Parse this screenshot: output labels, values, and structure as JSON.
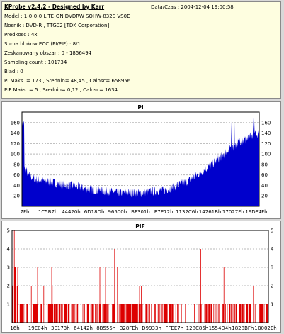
{
  "info": {
    "title": "KProbe v2.4.2 - Designed by Karr",
    "datetime": "Data/Czas : 2004-12-04 19:00:58",
    "lines": [
      "Model : 1-0-0-0 LITE-ON DVDRW SOHW-832S  VS0E",
      "Nosnik : DVD-R , TTG02 [TDK Corporation]",
      "Predkosc : 4x",
      "Suma blokow ECC (PI/PIF) : 8/1",
      "Zeskanowany obszar : 0 - 1856494",
      "Sampling count : 101734",
      "Blad : 0",
      "PI Maks. = 173 , Srednio= 48,45 , Calosc= 658956",
      "PIF Maks. = 5 , Srednio= 0,12 , Calosc= 1634"
    ]
  },
  "chart_data": [
    {
      "type": "area",
      "title": "PI",
      "color": "#0000cc",
      "ylim": [
        0,
        180
      ],
      "yticks": [
        20,
        40,
        60,
        80,
        100,
        120,
        140,
        160
      ],
      "xtick_labels": [
        "7Fh",
        "1C5B7h",
        "44420h",
        "6D18Dh",
        "96500h",
        "BF301h",
        "E7E72h",
        "1132C6h",
        "14261Bh",
        "17027Fh",
        "19DF4Fh"
      ],
      "profile": [
        [
          0,
          135
        ],
        [
          0.01,
          75
        ],
        [
          0.03,
          58
        ],
        [
          0.06,
          52
        ],
        [
          0.1,
          48
        ],
        [
          0.2,
          40
        ],
        [
          0.3,
          32
        ],
        [
          0.4,
          26
        ],
        [
          0.5,
          26
        ],
        [
          0.6,
          31
        ],
        [
          0.7,
          48
        ],
        [
          0.8,
          80
        ],
        [
          0.9,
          118
        ],
        [
          0.95,
          130
        ],
        [
          1.0,
          140
        ]
      ],
      "max": 173
    },
    {
      "type": "bar",
      "title": "PIF",
      "color": "#dd0000",
      "ylim": [
        0,
        5
      ],
      "yticks": [
        1,
        2,
        3,
        4,
        5
      ],
      "xtick_labels": [
        "16h",
        "19E04h",
        "3E173h",
        "64142h",
        "8B555h",
        "B28FEh",
        "D9933h",
        "FFEE7h",
        "128C85h",
        "1554D4h",
        "1828BFh",
        "1B002Eh"
      ],
      "max": 5,
      "density": 0.55,
      "tall_fraction": 0.11,
      "gap_from": 0.66,
      "gap_to": 0.72
    }
  ]
}
